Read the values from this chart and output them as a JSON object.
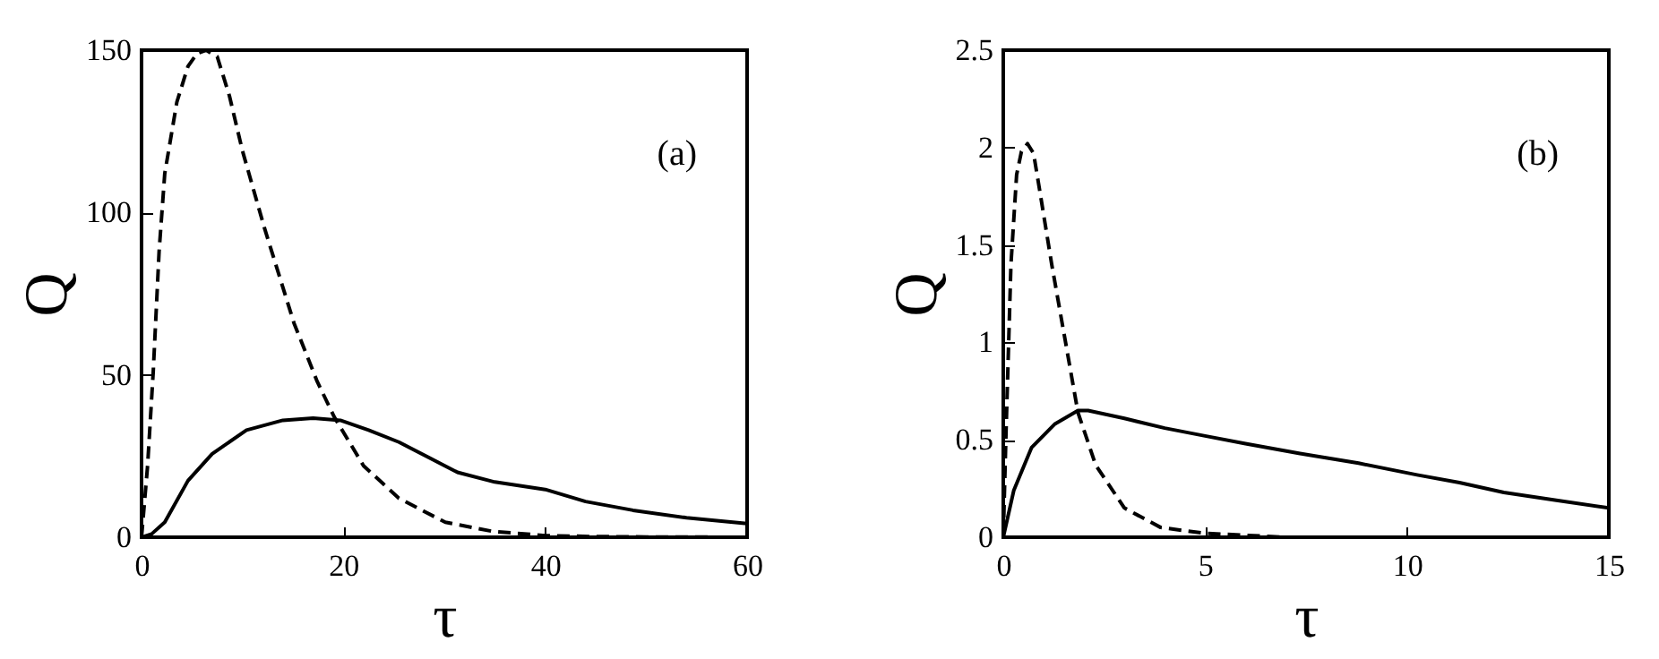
{
  "chart_data": [
    {
      "type": "line",
      "xlabel": "τ",
      "ylabel": "Q",
      "xlim": [
        0,
        60
      ],
      "ylim": [
        0,
        150
      ],
      "xticks": [
        0,
        20,
        40,
        60
      ],
      "yticks": [
        0,
        50,
        100,
        150
      ],
      "annotations": [
        "(a)"
      ],
      "series": [
        {
          "color": "#000000",
          "line_style": "solid",
          "x": [
            0,
            1,
            2.3,
            4.6,
            7,
            10.4,
            14,
            17,
            19.7,
            22.5,
            25.5,
            31.3,
            35,
            40,
            44,
            48.7,
            54,
            60
          ],
          "values": [
            0,
            1,
            4.6,
            17.4,
            25.7,
            33,
            36,
            36.7,
            36,
            33,
            29.3,
            20,
            17,
            14.7,
            11,
            8.3,
            6,
            4.2
          ]
        },
        {
          "color": "#000000",
          "line_style": "dashed",
          "x": [
            0,
            0.6,
            1.16,
            1.74,
            2.3,
            3.5,
            4.6,
            5.5,
            6.4,
            7.5,
            8.7,
            10,
            12.2,
            15.1,
            17.4,
            19.1,
            22,
            25.5,
            30.1,
            34.8,
            40,
            45,
            50,
            60
          ],
          "values": [
            0,
            22,
            51,
            88,
            112,
            134,
            145,
            149,
            150,
            148,
            136,
            119,
            95,
            66,
            48,
            37,
            22,
            12,
            4.6,
            1.8,
            0.5,
            0.2,
            0.1,
            0
          ]
        }
      ]
    },
    {
      "type": "line",
      "xlabel": "τ",
      "ylabel": "Q",
      "xlim": [
        0,
        15
      ],
      "ylim": [
        0,
        2.5
      ],
      "xticks": [
        0,
        5,
        10,
        15
      ],
      "yticks": [
        0,
        0.5,
        1,
        1.5,
        2,
        2.5
      ],
      "annotations": [
        "(b)"
      ],
      "series": [
        {
          "color": "#000000",
          "line_style": "solid",
          "x": [
            0,
            0.26,
            0.7,
            1.27,
            1.85,
            2.1,
            3,
            4,
            5,
            6,
            7.35,
            8.8,
            10.25,
            11.3,
            12.4,
            13.7,
            15
          ],
          "values": [
            0,
            0.24,
            0.46,
            0.58,
            0.65,
            0.65,
            0.61,
            0.56,
            0.52,
            0.48,
            0.43,
            0.38,
            0.32,
            0.28,
            0.23,
            0.19,
            0.15
          ]
        },
        {
          "color": "#000000",
          "line_style": "dashed",
          "x": [
            0,
            0.07,
            0.19,
            0.33,
            0.45,
            0.6,
            0.75,
            0.91,
            1.2,
            1.56,
            1.85,
            2.29,
            3,
            3.9,
            5,
            7,
            10,
            15
          ],
          "values": [
            0,
            0.55,
            1.4,
            1.86,
            1.98,
            2.02,
            1.97,
            1.77,
            1.4,
            0.98,
            0.64,
            0.37,
            0.15,
            0.05,
            0.02,
            0,
            0,
            0
          ]
        }
      ]
    }
  ]
}
